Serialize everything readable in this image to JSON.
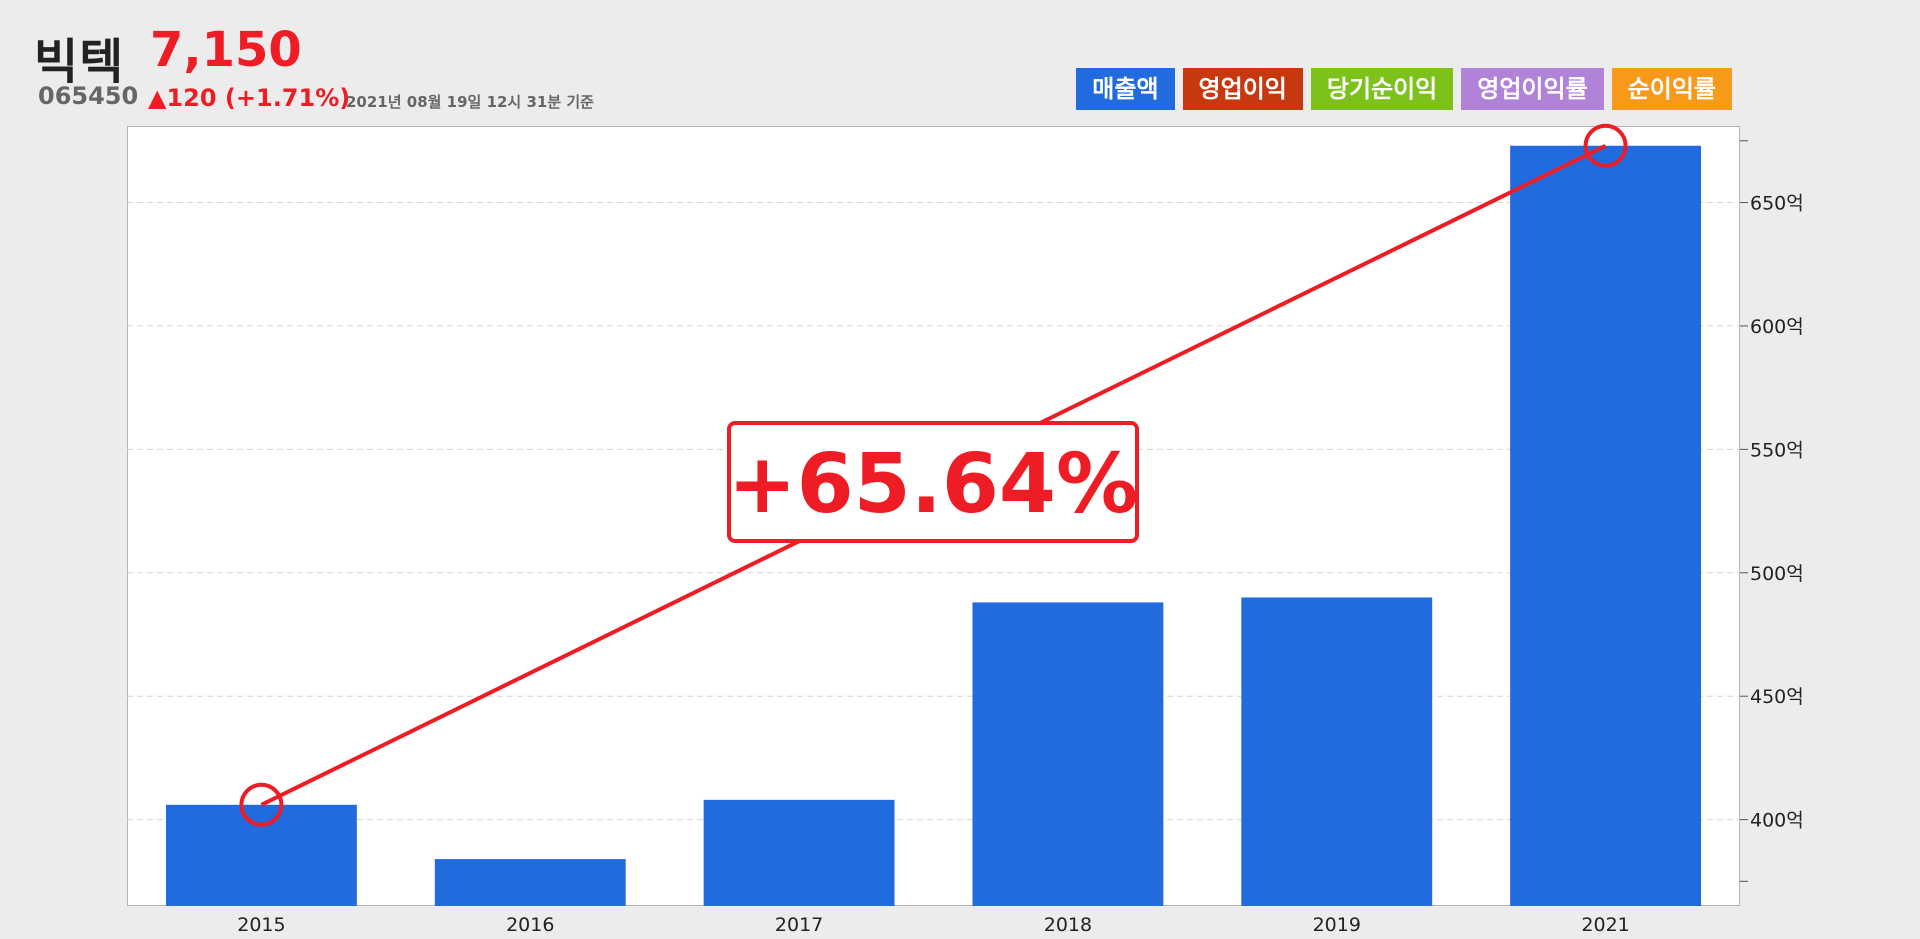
{
  "stock": {
    "name": "빅텍",
    "price": "7,150",
    "code": "065450",
    "change": "▲120 (+1.71%)",
    "timestamp": "2021년 08월 19일 12시 31분 기준"
  },
  "legend": [
    {
      "label": "매출액",
      "color": "#216bdf"
    },
    {
      "label": "영업이익",
      "color": "#c8380f"
    },
    {
      "label": "당기순이익",
      "color": "#7cc21a"
    },
    {
      "label": "영업이익률",
      "color": "#b083d9"
    },
    {
      "label": "순이익률",
      "color": "#f89a19"
    }
  ],
  "annotation": {
    "text": "+65.64%",
    "color": "#ee1c25",
    "from_category": "2015",
    "to_category": "2021"
  },
  "chart_data": {
    "type": "bar",
    "categories": [
      "2015",
      "2016",
      "2017",
      "2018",
      "2019",
      "2021"
    ],
    "series": [
      {
        "name": "매출액",
        "color": "#216bdf",
        "values": [
          406,
          384,
          408,
          488,
          490,
          673
        ]
      }
    ],
    "ylim": [
      365,
      681
    ],
    "yticks": [
      400,
      450,
      500,
      550,
      600,
      650
    ],
    "ytick_labels": [
      "400억",
      "450억",
      "500억",
      "550억",
      "600억",
      "650억"
    ],
    "y_unit": "억",
    "grid": true,
    "legend_position": "top-right"
  }
}
